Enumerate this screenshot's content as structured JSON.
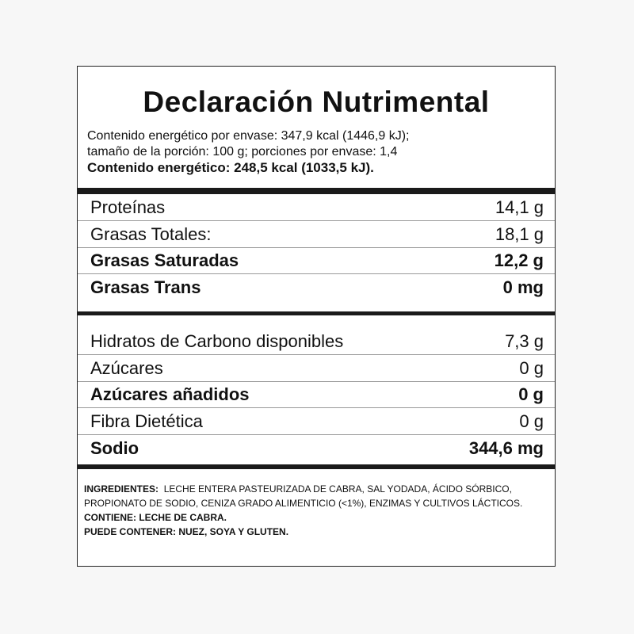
{
  "title": "Declaración Nutrimental",
  "energy": {
    "line1": "Contenido energético por envase: 347,9 kcal (1446,9 kJ);",
    "line2": "tamaño de la porción: 100 g; porciones por envase: 1,4",
    "line3": "Contenido energético: 248,5 kcal (1033,5 kJ)."
  },
  "section1": [
    {
      "label": "Proteínas",
      "value": "14,1 g",
      "bold": false
    },
    {
      "label": "Grasas Totales:",
      "value": "18,1 g",
      "bold": false
    },
    {
      "label": "Grasas Saturadas",
      "value": "12,2 g",
      "bold": true
    },
    {
      "label": "Grasas Trans",
      "value": "0 mg",
      "bold": true
    }
  ],
  "section2": [
    {
      "label": "Hidratos de Carbono disponibles",
      "value": "7,3 g",
      "bold": false
    },
    {
      "label": "Azúcares",
      "value": "0 g",
      "bold": false
    },
    {
      "label": "Azúcares añadidos",
      "value": "0 g",
      "bold": true
    },
    {
      "label": "Fibra Dietética",
      "value": "0 g",
      "bold": false
    },
    {
      "label": "Sodio",
      "value": "344,6 mg",
      "bold": true
    }
  ],
  "ingredients": {
    "label": "INGREDIENTES:",
    "text": "LECHE ENTERA PASTEURIZADA DE CABRA, SAL YODADA, ÁCIDO SÓRBICO, PROPIONATO DE SODIO, CENIZA GRADO ALIMENTICIO (<1%),  ENZIMAS Y CULTIVOS LÁCTICOS.",
    "contains": "CONTIENE: LECHE DE CABRA.",
    "may_contain": "PUEDE CONTENER: NUEZ, SOYA Y GLUTEN."
  }
}
